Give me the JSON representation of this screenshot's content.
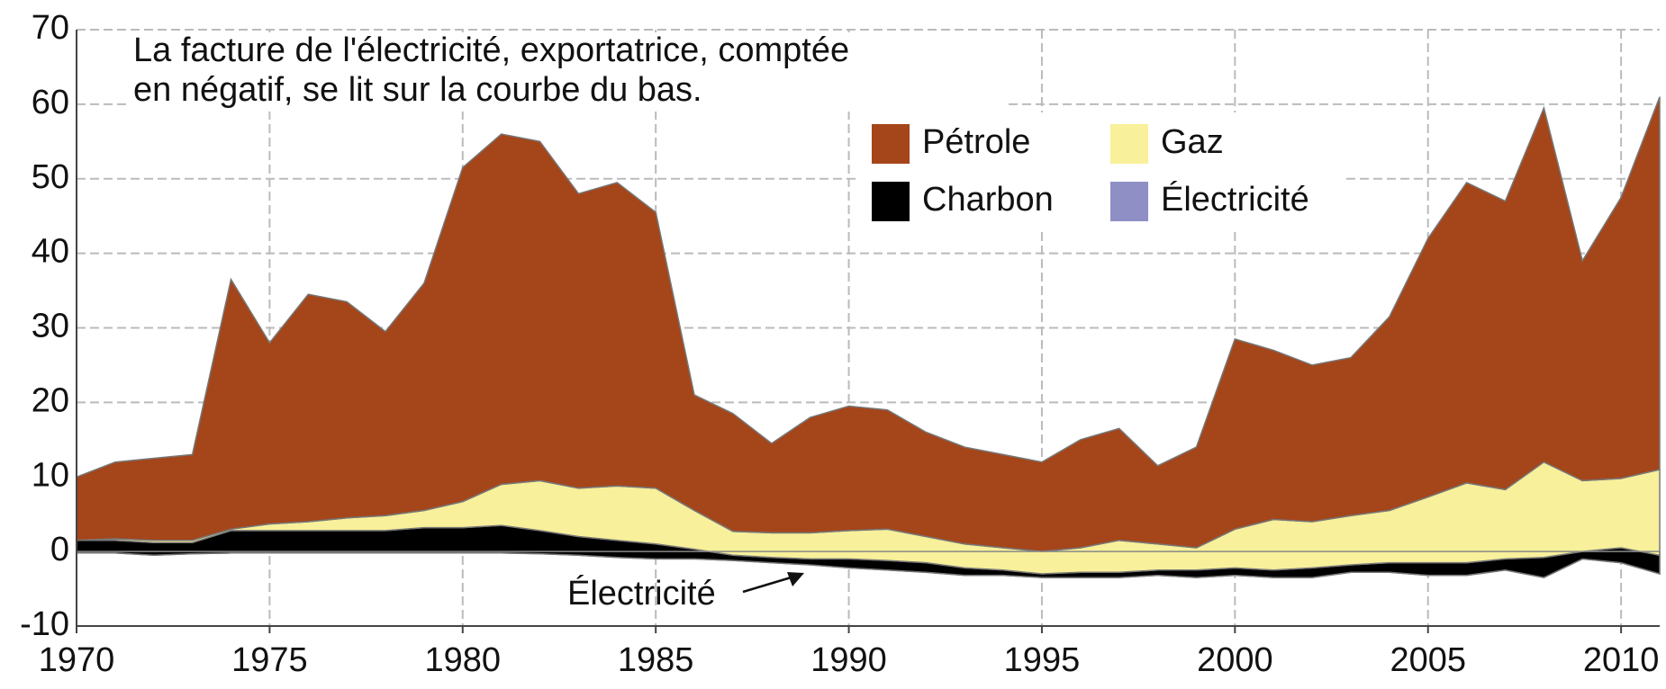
{
  "chart_data": {
    "type": "area",
    "annotations": [
      "La facture de l'électricité, exportatrice, comptée",
      "en négatif, se lit sur la courbe du bas.",
      "Électricité"
    ],
    "x": [
      1970,
      1971,
      1972,
      1973,
      1974,
      1975,
      1976,
      1977,
      1978,
      1979,
      1980,
      1981,
      1982,
      1983,
      1984,
      1985,
      1986,
      1987,
      1988,
      1989,
      1990,
      1991,
      1992,
      1993,
      1994,
      1995,
      1996,
      1997,
      1998,
      1999,
      2000,
      2001,
      2002,
      2003,
      2004,
      2005,
      2006,
      2007,
      2008,
      2009,
      2010,
      2011
    ],
    "series": [
      {
        "name": "Pétrole",
        "color": "#a5451a",
        "values": [
          8.5,
          10.3,
          11,
          11.5,
          33.5,
          24.3,
          30.5,
          29,
          24.7,
          30.5,
          44.8,
          47,
          45.5,
          39.5,
          40.7,
          37,
          15.5,
          15.8,
          12,
          15.5,
          16.7,
          16,
          14,
          13,
          12.5,
          12,
          14.5,
          15,
          10.5,
          13.5,
          25.5,
          22.7,
          21,
          21.2,
          26,
          34.7,
          40.3,
          38.7,
          47.5,
          29.5,
          37.7,
          50
        ]
      },
      {
        "name": "Gaz",
        "color": "#f8f09a",
        "values": [
          0,
          0.2,
          0.3,
          0.3,
          0.2,
          0.9,
          1.2,
          1.7,
          2,
          2.3,
          3.5,
          5.5,
          6.7,
          6.5,
          7.3,
          7.5,
          5.2,
          3.2,
          3.3,
          3.5,
          3.8,
          4.2,
          3.5,
          3.2,
          3,
          3,
          3.3,
          4.3,
          3.5,
          3,
          5.2,
          6.8,
          6.2,
          6.6,
          7,
          8.8,
          10.7,
          9.3,
          12.8,
          9.5,
          9.3,
          11.5
        ]
      },
      {
        "name": "Charbon",
        "color": "#000000",
        "values": [
          1.7,
          1.7,
          1.7,
          1.5,
          3,
          3,
          3,
          3,
          3,
          3.4,
          3.4,
          3.7,
          3.1,
          2.5,
          2.3,
          2,
          1.3,
          0.7,
          0.7,
          0.8,
          1.2,
          1.3,
          1.3,
          1,
          0.7,
          0.5,
          0.7,
          0.7,
          0.7,
          1,
          1,
          1,
          1.3,
          1,
          1.3,
          1.7,
          1.7,
          1.5,
          2.7,
          1,
          2,
          2.5
        ]
      },
      {
        "name": "Électricité",
        "color": "#8f8fc6",
        "values": [
          -0.2,
          -0.2,
          -0.5,
          -0.3,
          -0.2,
          -0.2,
          -0.2,
          -0.2,
          -0.2,
          -0.2,
          -0.2,
          -0.2,
          -0.3,
          -0.5,
          -0.8,
          -1,
          -1,
          -1.2,
          -1.5,
          -1.8,
          -2.2,
          -2.5,
          -2.8,
          -3.2,
          -3.2,
          -3.5,
          -3.5,
          -3.5,
          -3.2,
          -3.5,
          -3.2,
          -3.5,
          -3.5,
          -2.8,
          -2.8,
          -3.2,
          -3.2,
          -2.5,
          -3.5,
          -1,
          -1.5,
          -3
        ]
      }
    ],
    "xlim": [
      1970,
      2011
    ],
    "xticks": [
      1970,
      1975,
      1980,
      1985,
      1990,
      1995,
      2000,
      2005,
      2010
    ],
    "ylim": [
      -10,
      70
    ],
    "yticks": [
      -10,
      0,
      10,
      20,
      30,
      40,
      50,
      60,
      70
    ],
    "grid": true
  }
}
